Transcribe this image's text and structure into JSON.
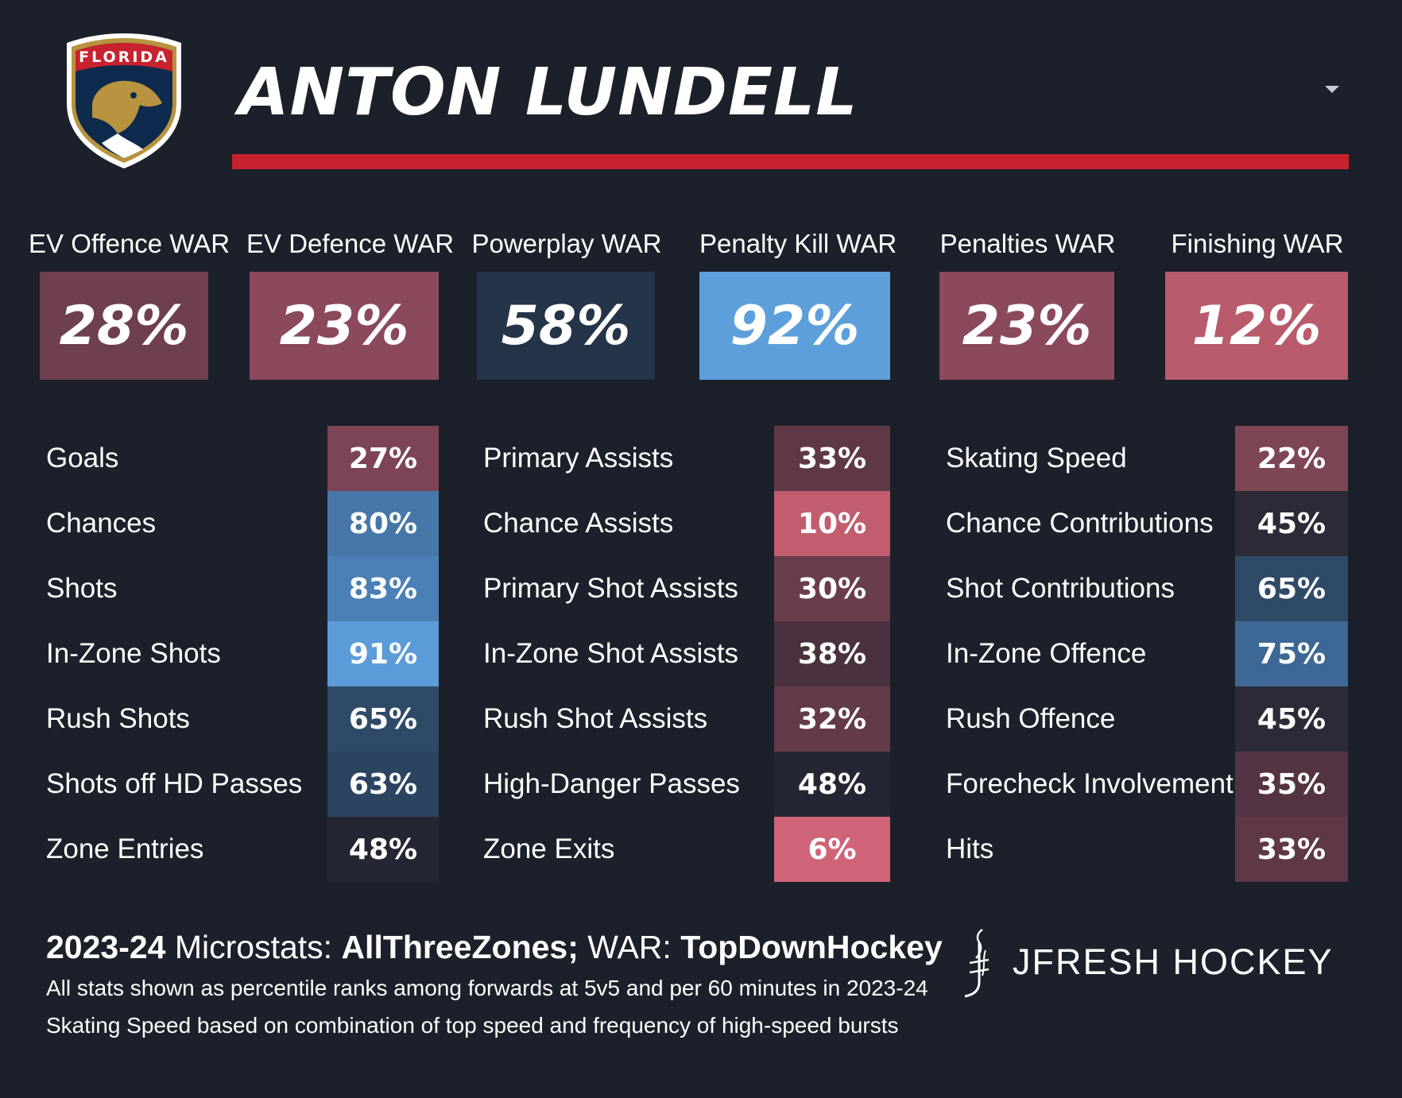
{
  "header": {
    "team_logo_icon": "florida-panthers-logo",
    "logo_text": "FLORIDA",
    "player_name": "ANTON LUNDELL",
    "menu_icon": "chevron-down-icon",
    "accent_color": "#c8222e"
  },
  "war": [
    {
      "label": "EV Offence WAR",
      "value": "28%",
      "color": "#6e3f4e"
    },
    {
      "label": "EV Defence WAR",
      "value": "23%",
      "color": "#8b4a5b"
    },
    {
      "label": "Powerplay WAR",
      "value": "58%",
      "color": "#243449"
    },
    {
      "label": "Penalty Kill WAR",
      "value": "92%",
      "color": "#5d9fdb"
    },
    {
      "label": "Penalties WAR",
      "value": "23%",
      "color": "#8b4a5b"
    },
    {
      "label": "Finishing WAR",
      "value": "12%",
      "color": "#b95b6c"
    }
  ],
  "columns": [
    {
      "rows": [
        {
          "label": "Goals",
          "value": "27%",
          "color": "#7c4454"
        },
        {
          "label": "Chances",
          "value": "80%",
          "color": "#4677a8"
        },
        {
          "label": "Shots",
          "value": "83%",
          "color": "#4a80b5"
        },
        {
          "label": "In-Zone Shots",
          "value": "91%",
          "color": "#5a9bd8"
        },
        {
          "label": "Rush Shots",
          "value": "65%",
          "color": "#2e4a66"
        },
        {
          "label": "Shots off HD Passes",
          "value": "63%",
          "color": "#2b445f"
        },
        {
          "label": "Zone Entries",
          "value": "48%",
          "color": "#242733"
        }
      ]
    },
    {
      "rows": [
        {
          "label": "Primary Assists",
          "value": "33%",
          "color": "#5e3847"
        },
        {
          "label": "Chance Assists",
          "value": "10%",
          "color": "#c25d70"
        },
        {
          "label": "Primary Shot Assists",
          "value": "30%",
          "color": "#6a3d4c"
        },
        {
          "label": "In-Zone Shot Assists",
          "value": "38%",
          "color": "#4a3140"
        },
        {
          "label": "Rush Shot Assists",
          "value": "32%",
          "color": "#633a49"
        },
        {
          "label": "High-Danger Passes",
          "value": "48%",
          "color": "#242733"
        },
        {
          "label": "Zone Exits",
          "value": "6%",
          "color": "#cf6478"
        }
      ]
    },
    {
      "rows": [
        {
          "label": "Skating Speed",
          "value": "22%",
          "color": "#7e4555"
        },
        {
          "label": "Chance Contributions",
          "value": "45%",
          "color": "#2c2a37"
        },
        {
          "label": "Shot Contributions",
          "value": "65%",
          "color": "#2e4a66"
        },
        {
          "label": "In-Zone Offence",
          "value": "75%",
          "color": "#3d6895"
        },
        {
          "label": "Rush Offence",
          "value": "45%",
          "color": "#2c2a37"
        },
        {
          "label": "Forecheck Involvement",
          "value": "35%",
          "color": "#543443"
        },
        {
          "label": "Hits",
          "value": "33%",
          "color": "#5e3847"
        }
      ]
    }
  ],
  "footer": {
    "season": "2023-24",
    "microstats_label": " Microstats: ",
    "microstats_source": "AllThreeZones;",
    "war_label": " WAR: ",
    "war_source": "TopDownHockey",
    "note1": "All stats shown as percentile ranks among forwards at 5v5 and per 60 minutes in 2023-24",
    "note2": "Skating Speed based on combination of top speed and frequency of high-speed bursts",
    "brand_icon": "jfresh-hockey-mark-icon",
    "brand": "JFRESH HOCKEY"
  }
}
